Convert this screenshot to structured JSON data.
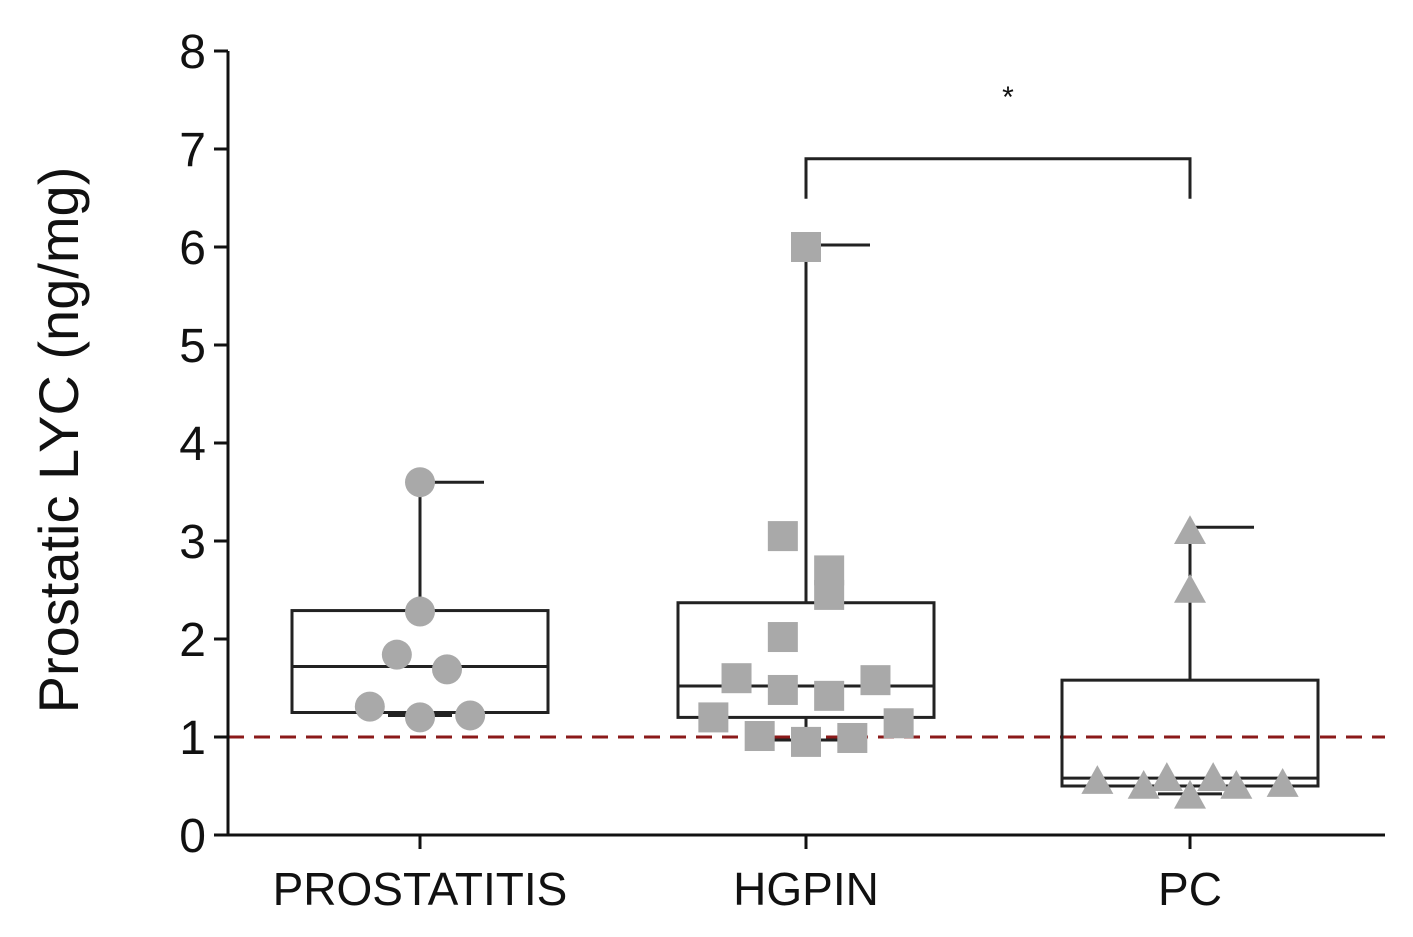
{
  "chart_data": {
    "type": "box",
    "title": "",
    "xlabel": "",
    "ylabel": "Prostatic LYC (ng/mg)",
    "ylim": [
      0,
      8
    ],
    "yticks": [
      0,
      1,
      2,
      3,
      4,
      5,
      6,
      7,
      8
    ],
    "reference_line": {
      "y": 1,
      "style": "dashed",
      "color": "#8b1a1a"
    },
    "categories": [
      "PROSTATITIS",
      "HGPIN",
      "PC"
    ],
    "groups": [
      {
        "name": "PROSTATITIS",
        "marker": "circle",
        "min": 1.22,
        "q1": 1.25,
        "median": 1.72,
        "q3": 2.29,
        "max": 3.6,
        "points": [
          {
            "x": -0.13,
            "y": 1.31
          },
          {
            "x": 0.0,
            "y": 1.2
          },
          {
            "x": 0.13,
            "y": 1.22
          },
          {
            "x": -0.06,
            "y": 1.84
          },
          {
            "x": 0.07,
            "y": 1.69
          },
          {
            "x": 0.0,
            "y": 2.28
          },
          {
            "x": 0.0,
            "y": 3.6
          }
        ]
      },
      {
        "name": "HGPIN",
        "marker": "square",
        "min": 0.97,
        "q1": 1.2,
        "median": 1.52,
        "q3": 2.37,
        "max": 6.02,
        "points": [
          {
            "x": -0.24,
            "y": 1.2
          },
          {
            "x": -0.18,
            "y": 1.6
          },
          {
            "x": -0.06,
            "y": 1.48
          },
          {
            "x": 0.06,
            "y": 1.42
          },
          {
            "x": 0.18,
            "y": 1.58
          },
          {
            "x": 0.24,
            "y": 1.14
          },
          {
            "x": -0.12,
            "y": 1.01
          },
          {
            "x": 0.0,
            "y": 0.95
          },
          {
            "x": 0.12,
            "y": 0.99
          },
          {
            "x": -0.06,
            "y": 2.02
          },
          {
            "x": 0.06,
            "y": 2.7
          },
          {
            "x": 0.06,
            "y": 2.45
          },
          {
            "x": -0.06,
            "y": 3.05
          },
          {
            "x": 0.0,
            "y": 6.0
          }
        ]
      },
      {
        "name": "PC",
        "marker": "triangle",
        "min": 0.42,
        "q1": 0.5,
        "median": 0.58,
        "q3": 1.58,
        "max": 3.14,
        "points": [
          {
            "x": -0.24,
            "y": 0.55
          },
          {
            "x": -0.12,
            "y": 0.5
          },
          {
            "x": -0.06,
            "y": 0.58
          },
          {
            "x": 0.0,
            "y": 0.4
          },
          {
            "x": 0.06,
            "y": 0.58
          },
          {
            "x": 0.12,
            "y": 0.5
          },
          {
            "x": 0.24,
            "y": 0.52
          },
          {
            "x": 0.0,
            "y": 2.5
          },
          {
            "x": 0.0,
            "y": 3.1
          }
        ]
      }
    ],
    "annotations": [
      {
        "type": "significance",
        "from": "HGPIN",
        "to": "PC",
        "label": "*",
        "y": 6.9
      }
    ]
  }
}
